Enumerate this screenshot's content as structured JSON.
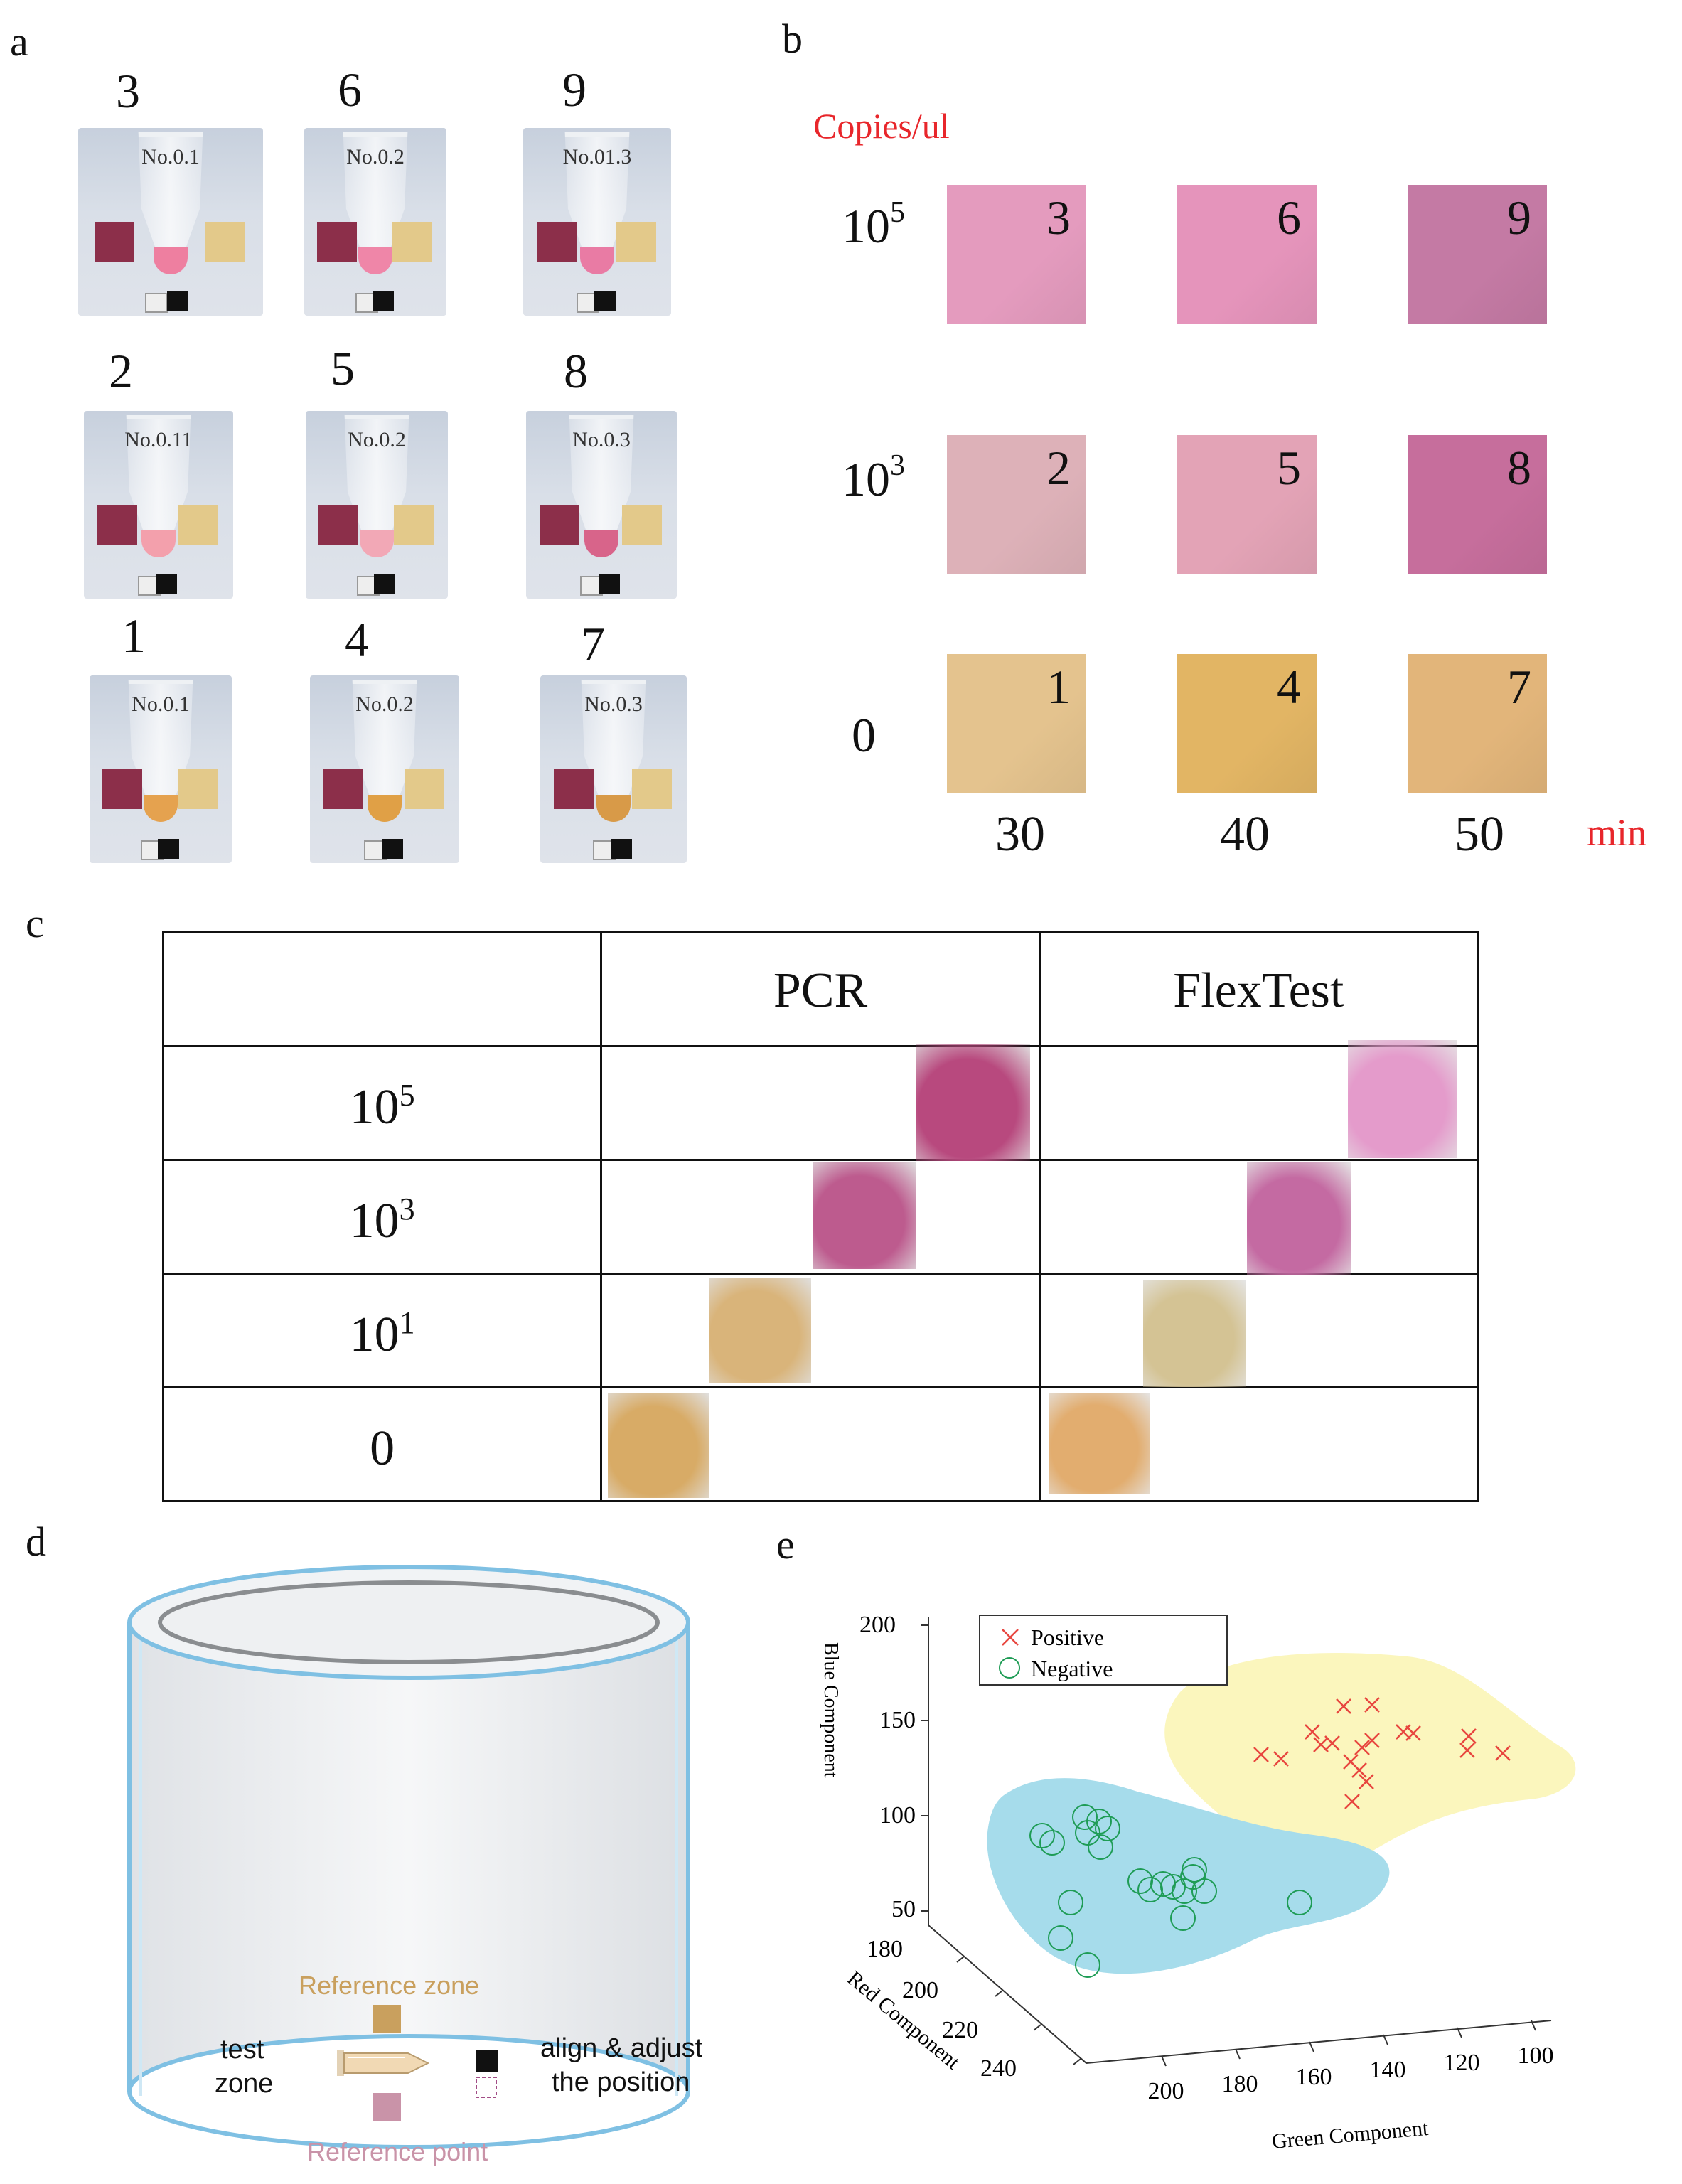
{
  "panels": {
    "a": "a",
    "b": "b",
    "c": "c",
    "d": "d",
    "e": "e"
  },
  "panel_a": {
    "photos": [
      {
        "number": "3",
        "label": "No.0.1",
        "liquid": "#ee7fa0"
      },
      {
        "number": "6",
        "label": "No.0.2",
        "liquid": "#ef86a8"
      },
      {
        "number": "9",
        "label": "No.01.3",
        "liquid": "#e97ba4"
      },
      {
        "number": "2",
        "label": "No.0.11",
        "liquid": "#f3a0ac"
      },
      {
        "number": "5",
        "label": "No.0.2",
        "liquid": "#f2a8b6"
      },
      {
        "number": "8",
        "label": "No.0.3",
        "liquid": "#d8648a"
      },
      {
        "number": "1",
        "label": "No.0.1",
        "liquid": "#e5a24f"
      },
      {
        "number": "4",
        "label": "No.0.2",
        "liquid": "#e0a046"
      },
      {
        "number": "7",
        "label": "No.0.3",
        "liquid": "#d89a48"
      }
    ]
  },
  "panel_b": {
    "unit_label": "Copies/ul",
    "time_unit": "min",
    "rows": [
      {
        "base": "10",
        "exp": "5"
      },
      {
        "base": "10",
        "exp": "3"
      },
      {
        "base": "0",
        "exp": ""
      }
    ],
    "times": [
      "30",
      "40",
      "50"
    ],
    "swatches": [
      {
        "n": "3",
        "color": "#e49bbe"
      },
      {
        "n": "6",
        "color": "#e594bb"
      },
      {
        "n": "9",
        "color": "#c47aa4"
      },
      {
        "n": "2",
        "color": "#ddb1b8"
      },
      {
        "n": "5",
        "color": "#e3a3b6"
      },
      {
        "n": "8",
        "color": "#c66e9c"
      },
      {
        "n": "1",
        "color": "#e4c38e"
      },
      {
        "n": "4",
        "color": "#e2b564"
      },
      {
        "n": "7",
        "color": "#e2b57a"
      }
    ]
  },
  "panel_c": {
    "headers": [
      "PCR",
      "FlexTest"
    ],
    "rows": [
      {
        "base": "10",
        "exp": "5",
        "pcr": "#b8497e",
        "flex": "#e49bcb"
      },
      {
        "base": "10",
        "exp": "3",
        "pcr": "#bd5b8e",
        "flex": "#c46aa2"
      },
      {
        "base": "10",
        "exp": "1",
        "pcr": "#d9b47a",
        "flex": "#d4c394"
      },
      {
        "base": "0",
        "exp": "",
        "pcr": "#d8ab66",
        "flex": "#e2ad6f"
      }
    ]
  },
  "panel_d": {
    "reference_zone": "Reference zone",
    "test_zone_line1": "test",
    "test_zone_line2": "zone",
    "align_line1": "align & adjust",
    "align_line2": "the position",
    "reference_point": "Reference point",
    "colors": {
      "ref_zone": "#c9a05e",
      "ref_point": "#c993a8",
      "rim": "#7fc0e3"
    }
  },
  "panel_e": {
    "legend": {
      "positive": "Positive",
      "negative": "Negative"
    },
    "axes": {
      "z_label": "Blue Component",
      "z_ticks": [
        "200",
        "150",
        "100",
        "50"
      ],
      "y_label": "Red Component",
      "y_ticks": [
        "180",
        "200",
        "220",
        "240"
      ],
      "x_label": "Green Component",
      "x_ticks": [
        "200",
        "180",
        "160",
        "140",
        "120",
        "100"
      ]
    },
    "colors": {
      "positive": "#e8463f",
      "negative": "#1e9c55",
      "pos_region": "#fbf6bd",
      "neg_region": "#a6dceb"
    }
  }
}
